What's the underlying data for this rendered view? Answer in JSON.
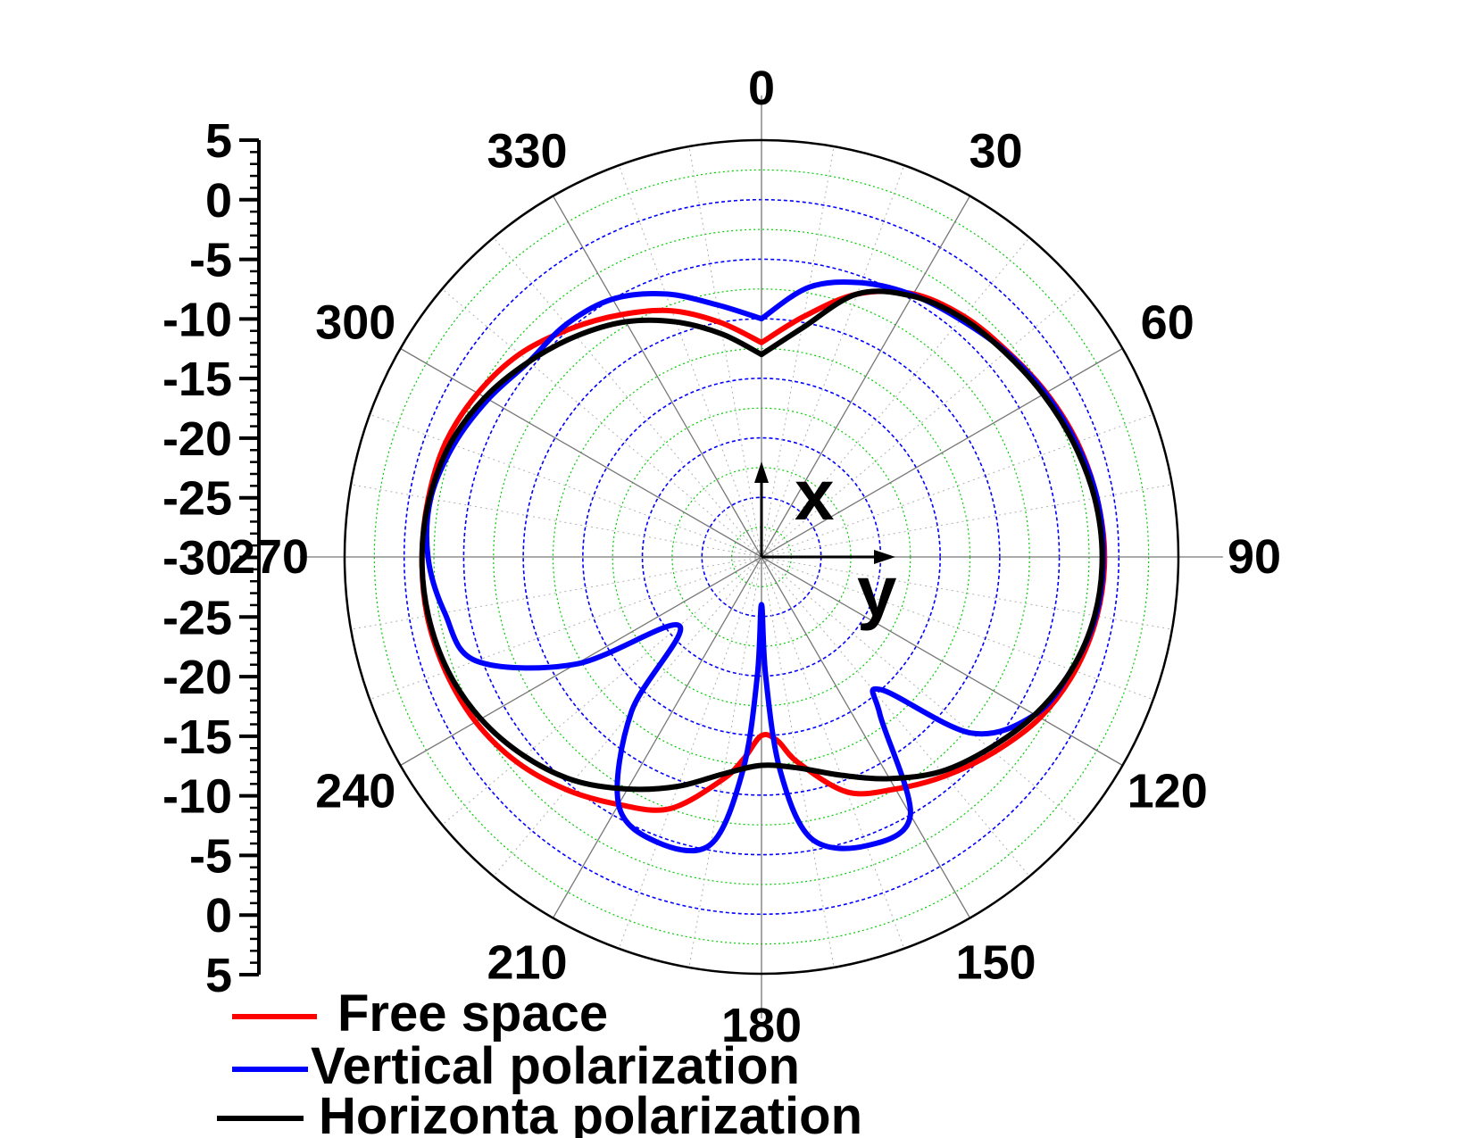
{
  "chart_data": {
    "type": "polar-line",
    "units": "dB",
    "radial_axis": {
      "min": -30,
      "max": 5,
      "tick_step": 5,
      "tick_labels_left": [
        "5",
        "0",
        "-5",
        "-10",
        "-15",
        "-20",
        "-25",
        "-30",
        "-25",
        "-20",
        "-15",
        "-10",
        "-5",
        "0",
        "5"
      ],
      "major_grid_color": "#0000ff",
      "minor_grid_color": "#00cc00"
    },
    "angular_axis": {
      "direction": "clockwise",
      "zero": "top",
      "tick_step": 30,
      "labels": [
        "0",
        "30",
        "60",
        "90",
        "120",
        "150",
        "180",
        "210",
        "240",
        "270",
        "300",
        "330"
      ]
    },
    "annotations": {
      "x_label": "x",
      "y_label": "y"
    },
    "series": [
      {
        "name": "Free space",
        "color": "#ff0000",
        "theta": [
          0,
          10,
          20,
          30,
          40,
          50,
          60,
          70,
          80,
          90,
          100,
          110,
          120,
          130,
          140,
          150,
          160,
          170,
          175,
          180,
          185,
          190,
          200,
          210,
          220,
          230,
          240,
          250,
          260,
          270,
          280,
          290,
          300,
          310,
          320,
          330,
          340,
          350,
          360
        ],
        "r": [
          -12.0,
          -9.5,
          -6.5,
          -4.5,
          -3.6,
          -3.1,
          -2.4,
          -1.8,
          -1.4,
          -1.2,
          -1.4,
          -2.0,
          -3.0,
          -4.5,
          -6.0,
          -7.5,
          -9.0,
          -12.5,
          -14.5,
          -15.0,
          -13.0,
          -11.0,
          -7.5,
          -6.0,
          -4.5,
          -3.2,
          -2.3,
          -1.8,
          -1.5,
          -1.5,
          -1.6,
          -1.8,
          -2.5,
          -3.5,
          -5.0,
          -6.5,
          -8.0,
          -10.0,
          -12.0
        ]
      },
      {
        "name": "Vertical polarization",
        "color": "#0000ff",
        "theta": [
          0,
          10,
          20,
          30,
          40,
          50,
          60,
          70,
          80,
          90,
          100,
          110,
          120,
          130,
          138,
          143,
          150,
          160,
          170,
          175,
          178,
          180,
          182,
          185,
          190,
          200,
          210,
          220,
          230,
          240,
          250,
          260,
          270,
          280,
          290,
          300,
          310,
          320,
          330,
          340,
          350,
          360
        ],
        "r": [
          -10.0,
          -7.0,
          -5.5,
          -4.6,
          -4.0,
          -3.2,
          -2.5,
          -1.9,
          -1.4,
          -1.3,
          -1.5,
          -2.3,
          -3.5,
          -7.0,
          -15.0,
          -13.5,
          -5.0,
          -4.2,
          -6.0,
          -12.0,
          -20.0,
          -26.0,
          -20.0,
          -12.0,
          -5.5,
          -4.5,
          -6.0,
          -13.0,
          -21.0,
          -12.0,
          -4.5,
          -3.0,
          -2.0,
          -1.8,
          -2.5,
          -3.5,
          -4.5,
          -4.5,
          -5.0,
          -6.5,
          -8.5,
          -10.0
        ]
      },
      {
        "name": "Horizonta polarization",
        "color": "#000000",
        "theta": [
          0,
          10,
          20,
          30,
          40,
          50,
          60,
          70,
          80,
          90,
          100,
          110,
          120,
          130,
          140,
          150,
          160,
          170,
          180,
          190,
          200,
          210,
          220,
          230,
          240,
          250,
          260,
          270,
          280,
          290,
          300,
          310,
          320,
          330,
          340,
          350,
          360
        ],
        "r": [
          -13.0,
          -10.5,
          -6.5,
          -4.7,
          -3.8,
          -3.3,
          -2.7,
          -2.1,
          -1.6,
          -1.4,
          -1.6,
          -2.3,
          -3.5,
          -5.0,
          -6.5,
          -8.5,
          -10.5,
          -12.0,
          -12.5,
          -11.5,
          -9.5,
          -7.5,
          -5.5,
          -4.0,
          -2.8,
          -2.0,
          -1.6,
          -1.5,
          -1.7,
          -2.2,
          -3.2,
          -4.5,
          -5.8,
          -7.2,
          -9.0,
          -11.0,
          -13.0
        ]
      }
    ],
    "legend": {
      "position": "bottom-left",
      "entries": [
        "Free space",
        "Vertical polarization",
        "Horizonta polarization"
      ]
    }
  }
}
